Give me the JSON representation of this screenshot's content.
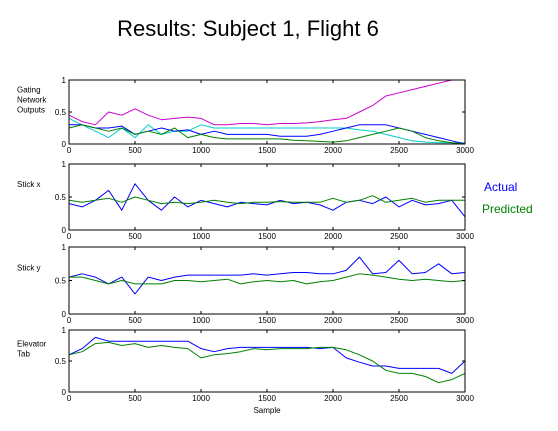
{
  "title": "Results: Subject 1, Flight 6",
  "legend": [
    {
      "label": "Actual",
      "color": "#0000ff"
    },
    {
      "label": "Predicted",
      "color": "#008000"
    }
  ],
  "chart_data": [
    {
      "type": "line",
      "ylabel_lines": [
        "Gating",
        "Network",
        "Outputs"
      ],
      "xlim": [
        0,
        3000
      ],
      "ylim": [
        0,
        1
      ],
      "xticks": [
        0,
        500,
        1000,
        1500,
        2000,
        2500,
        3000
      ],
      "yticks": [
        0,
        0.5,
        1
      ],
      "ytick_labels": [
        "0",
        "0.5",
        "1"
      ],
      "x": [
        0,
        100,
        200,
        300,
        400,
        500,
        600,
        700,
        800,
        900,
        1000,
        1100,
        1200,
        1300,
        1400,
        1500,
        1600,
        1700,
        1800,
        1900,
        2000,
        2100,
        2200,
        2300,
        2400,
        2500,
        2600,
        2700,
        2800,
        2900,
        3000
      ],
      "series": [
        {
          "color": "#cc00cc",
          "values": [
            0.45,
            0.35,
            0.3,
            0.5,
            0.45,
            0.55,
            0.45,
            0.38,
            0.4,
            0.42,
            0.4,
            0.3,
            0.3,
            0.32,
            0.32,
            0.3,
            0.32,
            0.32,
            0.33,
            0.35,
            0.38,
            0.4,
            0.5,
            0.6,
            0.75,
            0.8,
            0.85,
            0.9,
            0.95,
            1.0,
            1.0
          ]
        },
        {
          "color": "#00cccc",
          "values": [
            0.4,
            0.3,
            0.2,
            0.1,
            0.25,
            0.1,
            0.3,
            0.15,
            0.2,
            0.2,
            0.3,
            0.25,
            0.25,
            0.25,
            0.25,
            0.25,
            0.25,
            0.25,
            0.25,
            0.25,
            0.25,
            0.25,
            0.22,
            0.2,
            0.15,
            0.1,
            0.05,
            0.03,
            0.02,
            0.02,
            0.02
          ]
        },
        {
          "color": "#0000ff",
          "values": [
            0.3,
            0.3,
            0.25,
            0.25,
            0.28,
            0.15,
            0.2,
            0.25,
            0.2,
            0.22,
            0.15,
            0.2,
            0.15,
            0.15,
            0.15,
            0.15,
            0.12,
            0.12,
            0.12,
            0.15,
            0.2,
            0.25,
            0.3,
            0.3,
            0.3,
            0.25,
            0.2,
            0.15,
            0.1,
            0.05,
            0.0
          ]
        },
        {
          "color": "#008000",
          "values": [
            0.25,
            0.3,
            0.25,
            0.2,
            0.25,
            0.15,
            0.2,
            0.15,
            0.25,
            0.1,
            0.15,
            0.1,
            0.08,
            0.08,
            0.08,
            0.08,
            0.08,
            0.06,
            0.05,
            0.04,
            0.03,
            0.05,
            0.1,
            0.15,
            0.2,
            0.25,
            0.2,
            0.1,
            0.05,
            0.02,
            0.0
          ]
        },
        {
          "color": "#ff0000",
          "values": [
            0.0,
            0.0,
            0.0,
            0.0,
            0.0,
            0.0,
            0.0,
            0.0,
            0.0,
            0.0,
            0.0,
            0.0,
            0.0,
            0.0,
            0.0,
            0.0,
            0.0,
            0.0,
            0.0,
            0.0,
            0.0,
            0.0,
            0.0,
            0.0,
            0.0,
            0.0,
            0.0,
            0.0,
            0.0,
            0.0,
            0.0
          ]
        }
      ]
    },
    {
      "type": "line",
      "ylabel_lines": [
        "Stick x"
      ],
      "xlim": [
        0,
        3000
      ],
      "ylim": [
        0,
        1
      ],
      "xticks": [
        0,
        500,
        1000,
        1500,
        2000,
        2500,
        3000
      ],
      "yticks": [
        0,
        0.5,
        1
      ],
      "ytick_labels": [
        "0",
        "0.5",
        "1"
      ],
      "x": [
        0,
        100,
        200,
        300,
        400,
        500,
        600,
        700,
        800,
        900,
        1000,
        1100,
        1200,
        1300,
        1400,
        1500,
        1600,
        1700,
        1800,
        1900,
        2000,
        2100,
        2200,
        2300,
        2400,
        2500,
        2600,
        2700,
        2800,
        2900,
        3000
      ],
      "series": [
        {
          "name": "Actual",
          "color": "#0000ff",
          "values": [
            0.4,
            0.35,
            0.45,
            0.6,
            0.3,
            0.7,
            0.45,
            0.3,
            0.5,
            0.35,
            0.45,
            0.4,
            0.35,
            0.42,
            0.4,
            0.38,
            0.45,
            0.4,
            0.42,
            0.38,
            0.3,
            0.42,
            0.45,
            0.4,
            0.5,
            0.35,
            0.45,
            0.38,
            0.4,
            0.45,
            0.2
          ]
        },
        {
          "name": "Predicted",
          "color": "#008000",
          "values": [
            0.45,
            0.42,
            0.45,
            0.48,
            0.42,
            0.5,
            0.45,
            0.4,
            0.42,
            0.4,
            0.42,
            0.45,
            0.42,
            0.4,
            0.42,
            0.42,
            0.43,
            0.42,
            0.42,
            0.42,
            0.48,
            0.42,
            0.45,
            0.52,
            0.42,
            0.45,
            0.48,
            0.42,
            0.45,
            0.45,
            0.45
          ]
        }
      ]
    },
    {
      "type": "line",
      "ylabel_lines": [
        "Stick y"
      ],
      "xlim": [
        0,
        3000
      ],
      "ylim": [
        0,
        1
      ],
      "xticks": [
        0,
        500,
        1000,
        1500,
        2000,
        2500,
        3000
      ],
      "yticks": [
        0,
        0.5,
        1
      ],
      "ytick_labels": [
        "0",
        "0.5",
        "1"
      ],
      "x": [
        0,
        100,
        200,
        300,
        400,
        500,
        600,
        700,
        800,
        900,
        1000,
        1100,
        1200,
        1300,
        1400,
        1500,
        1600,
        1700,
        1800,
        1900,
        2000,
        2100,
        2200,
        2300,
        2400,
        2500,
        2600,
        2700,
        2800,
        2900,
        3000
      ],
      "series": [
        {
          "name": "Actual",
          "color": "#0000ff",
          "values": [
            0.55,
            0.6,
            0.55,
            0.45,
            0.55,
            0.3,
            0.55,
            0.5,
            0.55,
            0.58,
            0.58,
            0.58,
            0.58,
            0.58,
            0.6,
            0.58,
            0.6,
            0.62,
            0.62,
            0.6,
            0.6,
            0.65,
            0.85,
            0.6,
            0.62,
            0.8,
            0.6,
            0.62,
            0.75,
            0.6,
            0.62
          ]
        },
        {
          "name": "Predicted",
          "color": "#008000",
          "values": [
            0.55,
            0.55,
            0.5,
            0.45,
            0.5,
            0.45,
            0.45,
            0.45,
            0.5,
            0.5,
            0.48,
            0.5,
            0.52,
            0.45,
            0.48,
            0.5,
            0.48,
            0.5,
            0.45,
            0.48,
            0.5,
            0.55,
            0.6,
            0.58,
            0.55,
            0.52,
            0.5,
            0.52,
            0.5,
            0.48,
            0.5
          ]
        }
      ]
    },
    {
      "type": "line",
      "ylabel_lines": [
        "Elevator",
        "Tab"
      ],
      "xlim": [
        0,
        3000
      ],
      "ylim": [
        0,
        1
      ],
      "xticks": [
        0,
        500,
        1000,
        1500,
        2000,
        2500,
        3000
      ],
      "yticks": [
        0,
        0.5,
        1
      ],
      "ytick_labels": [
        "0",
        "0.5",
        "1"
      ],
      "xlabel": "Sample",
      "x": [
        0,
        100,
        200,
        300,
        400,
        500,
        600,
        700,
        800,
        900,
        1000,
        1100,
        1200,
        1300,
        1400,
        1500,
        1600,
        1700,
        1800,
        1900,
        2000,
        2100,
        2200,
        2300,
        2400,
        2500,
        2600,
        2700,
        2800,
        2900,
        3000
      ],
      "series": [
        {
          "name": "Actual",
          "color": "#0000ff",
          "values": [
            0.6,
            0.7,
            0.88,
            0.82,
            0.82,
            0.82,
            0.82,
            0.82,
            0.82,
            0.82,
            0.7,
            0.65,
            0.7,
            0.72,
            0.72,
            0.72,
            0.72,
            0.72,
            0.72,
            0.7,
            0.72,
            0.55,
            0.48,
            0.42,
            0.42,
            0.38,
            0.38,
            0.38,
            0.38,
            0.3,
            0.5
          ]
        },
        {
          "name": "Predicted",
          "color": "#008000",
          "values": [
            0.6,
            0.65,
            0.78,
            0.8,
            0.75,
            0.78,
            0.72,
            0.75,
            0.72,
            0.7,
            0.55,
            0.6,
            0.62,
            0.65,
            0.7,
            0.68,
            0.7,
            0.7,
            0.7,
            0.72,
            0.72,
            0.68,
            0.6,
            0.5,
            0.35,
            0.3,
            0.3,
            0.25,
            0.15,
            0.2,
            0.3
          ]
        }
      ]
    }
  ]
}
